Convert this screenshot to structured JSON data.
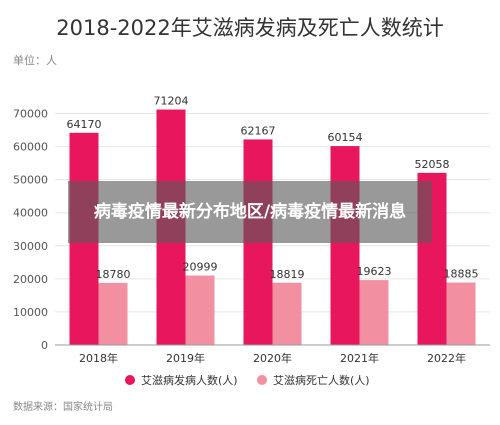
{
  "chart_data": {
    "type": "bar",
    "title": "2018-2022年艾滋病发病及死亡人数统计",
    "unit_label": "单位：人",
    "categories": [
      "2018年",
      "2019年",
      "2020年",
      "2021年",
      "2022年"
    ],
    "series": [
      {
        "name": "艾滋病发病人数(人)",
        "values": [
          64170,
          71204,
          62167,
          60154,
          52058
        ],
        "color": "#e8175d"
      },
      {
        "name": "艾滋病死亡人数(人)",
        "values": [
          18780,
          20999,
          18819,
          19623,
          18885
        ],
        "color": "#f28fa0"
      }
    ],
    "yticks": [
      "0",
      "10000",
      "20000",
      "30000",
      "40000",
      "50000",
      "60000",
      "70000"
    ],
    "ylim": [
      0,
      75000
    ],
    "grid": true,
    "legend_position": "bottom",
    "source": "数据来源：国家统计局"
  },
  "overlay": {
    "headline": "病毒疫情最新分布地区/病毒疫情最新消息"
  }
}
